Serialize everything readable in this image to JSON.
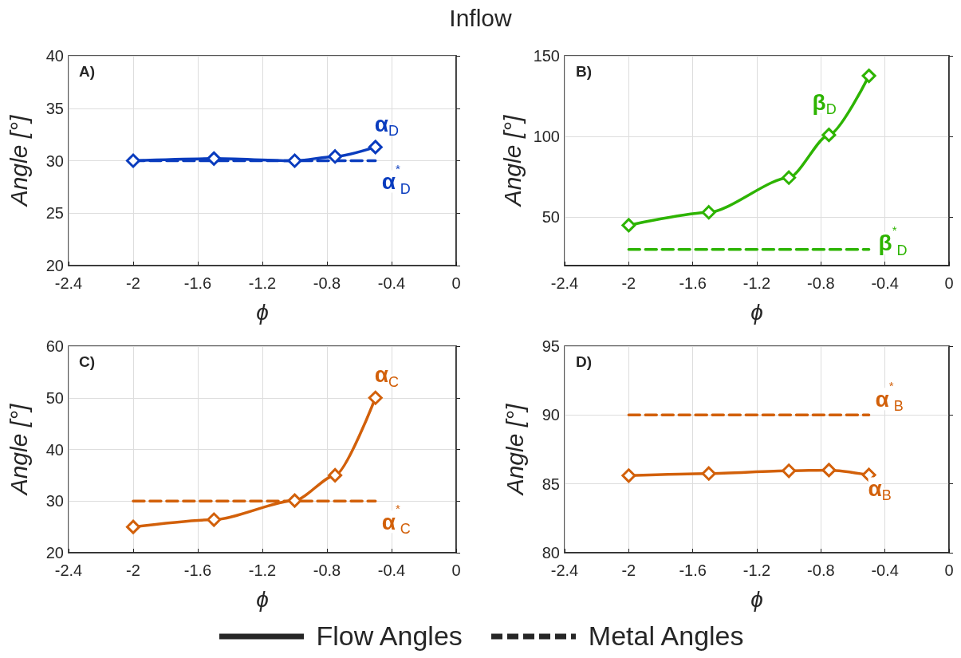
{
  "chart_data": [
    {
      "type": "line",
      "title": "Inflow",
      "xlabel": "ϕ",
      "ylabel": "Angle [°]",
      "xlim": [
        -2.4,
        0
      ],
      "xticks": [
        -2.4,
        -2,
        -1.6,
        -1.2,
        -0.8,
        -0.4,
        0
      ],
      "ylim": [
        20,
        40
      ],
      "yticks": [
        20,
        25,
        30,
        35,
        40
      ],
      "grid": true,
      "annotations": [
        "A)"
      ],
      "series": [
        {
          "name": "α$_{D}$",
          "color": "#0a3cbe",
          "x": [
            -2,
            -1.5,
            -1,
            -0.75,
            -0.5
          ],
          "values": [
            30,
            30.2,
            30,
            30.4,
            31.3
          ],
          "marker": "diamond",
          "line_style": "solid"
        },
        {
          "name": "α$^{*}$$_{D}$",
          "color": "#0a3cbe",
          "x": [
            -2,
            -0.5
          ],
          "values": [
            30,
            30
          ],
          "marker": "none",
          "line_style": "dashed"
        }
      ]
    },
    {
      "type": "line",
      "xlabel": "ϕ",
      "ylabel": "Angle [°]",
      "xlim": [
        -2.4,
        0
      ],
      "xticks": [
        -2.4,
        -2,
        -1.6,
        -1.2,
        -0.8,
        -0.4,
        0
      ],
      "ylim": [
        20,
        150
      ],
      "yticks": [
        50,
        100,
        150
      ],
      "grid": true,
      "annotations": [
        "B)"
      ],
      "series": [
        {
          "name": "β$_{D}$",
          "color": "#2db400",
          "x": [
            -2,
            -1.5,
            -1,
            -0.75,
            -0.5
          ],
          "values": [
            45,
            53,
            74.5,
            101,
            137.6
          ],
          "marker": "diamond",
          "line_style": "solid"
        },
        {
          "name": "β$^{*}$$_{D}$",
          "color": "#2db400",
          "x": [
            -2,
            -0.5
          ],
          "values": [
            30,
            30
          ],
          "marker": "none",
          "line_style": "dashed"
        }
      ]
    },
    {
      "type": "line",
      "xlabel": "ϕ",
      "ylabel": "Angle [°]",
      "xlim": [
        -2.4,
        0
      ],
      "xticks": [
        -2.4,
        -2,
        -1.6,
        -1.2,
        -0.8,
        -0.4,
        0
      ],
      "ylim": [
        20,
        60
      ],
      "yticks": [
        20,
        30,
        40,
        50,
        60
      ],
      "grid": true,
      "annotations": [
        "C)"
      ],
      "series": [
        {
          "name": "α$_{C}$",
          "color": "#d2600a",
          "x": [
            -2,
            -1.5,
            -1,
            -0.75,
            -0.5
          ],
          "values": [
            25,
            26.4,
            30.1,
            35,
            50
          ],
          "marker": "diamond",
          "line_style": "solid"
        },
        {
          "name": "α$^{*}$$_{C}$",
          "color": "#d2600a",
          "x": [
            -2,
            -0.5
          ],
          "values": [
            30,
            30
          ],
          "marker": "none",
          "line_style": "dashed"
        }
      ]
    },
    {
      "type": "line",
      "xlabel": "ϕ",
      "ylabel": "Angle [°]",
      "xlim": [
        -2.4,
        0
      ],
      "xticks": [
        -2.4,
        -2,
        -1.6,
        -1.2,
        -0.8,
        -0.4,
        0
      ],
      "ylim": [
        80,
        95
      ],
      "yticks": [
        80,
        85,
        90,
        95
      ],
      "grid": true,
      "annotations": [
        "D)",
        "Flow Angles",
        "Metal Angles"
      ],
      "series": [
        {
          "name": "α$_{B}$",
          "color": "#d2600a",
          "x": [
            -2,
            -1.5,
            -1,
            -0.75,
            -0.5
          ],
          "values": [
            85.6,
            85.75,
            85.95,
            86,
            85.65
          ],
          "marker": "diamond",
          "line_style": "solid"
        },
        {
          "name": "α$^{*}$$_{B}$",
          "color": "#d2600a",
          "x": [
            -2,
            -0.5
          ],
          "values": [
            90,
            90
          ],
          "marker": "none",
          "line_style": "dashed"
        }
      ]
    }
  ]
}
